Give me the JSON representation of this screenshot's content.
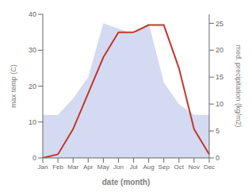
{
  "chart_data": {
    "type": "line",
    "xlabel": "date (month)",
    "ylabel": "max temp (C)",
    "y2label": "med. precipitation (kg/m2)",
    "categories": [
      "Jan",
      "Feb",
      "Mar",
      "Apr",
      "May",
      "Jun",
      "Jul",
      "Aug",
      "Sep",
      "Oct",
      "Nov",
      "Dec"
    ],
    "series": [
      {
        "type": "area",
        "color": "#b0bce8",
        "axis": "y2",
        "values": [
          8,
          8,
          11,
          15,
          25,
          24,
          23,
          25,
          14,
          10,
          8,
          8
        ]
      },
      {
        "type": "line",
        "color": "#c0392b",
        "values": [
          0,
          1,
          8,
          18,
          28,
          35,
          35,
          37,
          37,
          25,
          8,
          1
        ]
      }
    ],
    "ylim": [
      0,
      40
    ],
    "yticks": [
      0,
      10,
      20,
      30,
      40
    ],
    "y2lim": [
      0,
      26.67
    ],
    "y2ticks": [
      0,
      5,
      10,
      15,
      20,
      25
    ]
  }
}
